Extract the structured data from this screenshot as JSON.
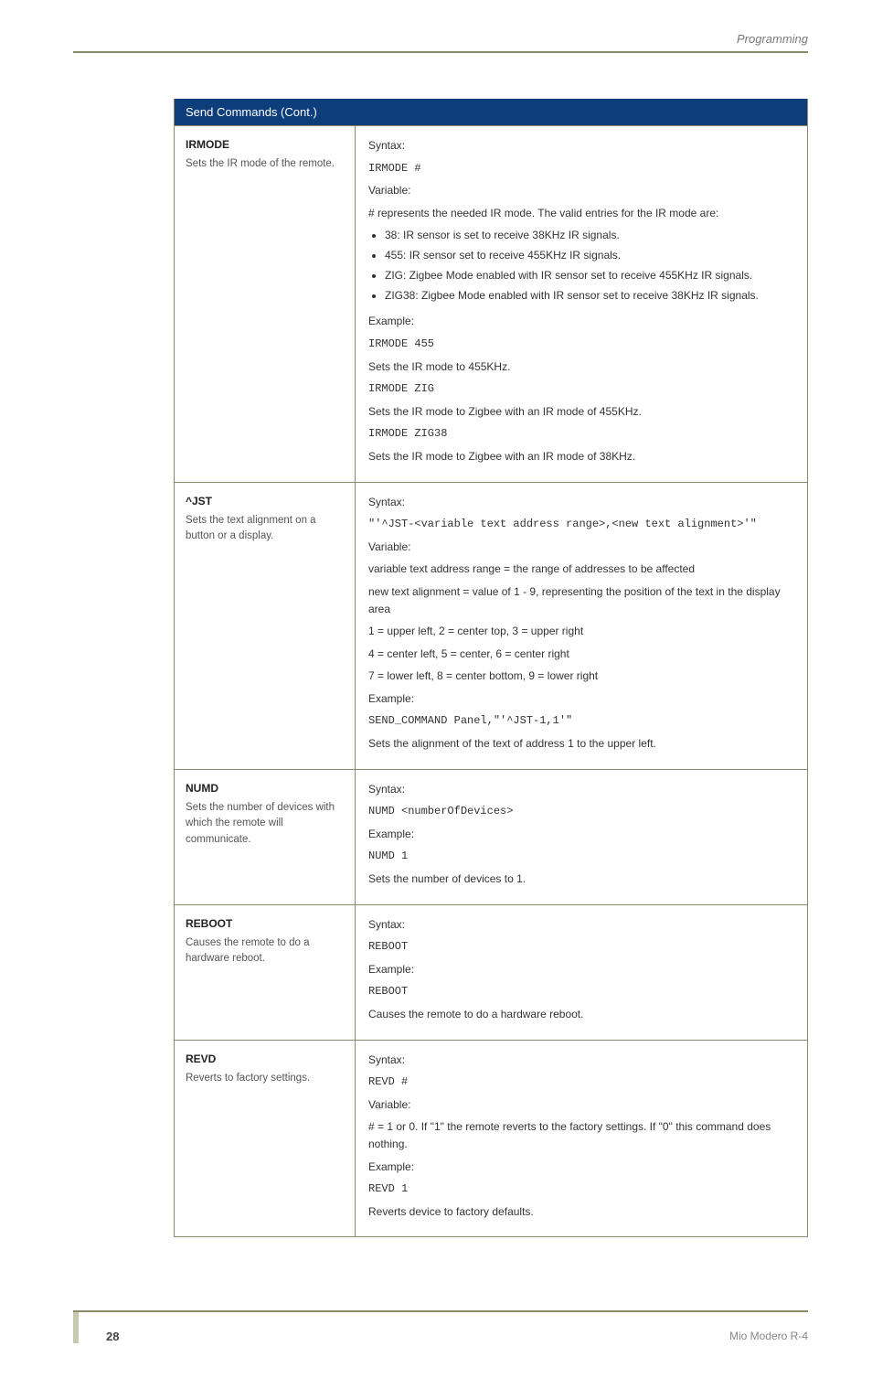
{
  "header": {
    "section": "Programming"
  },
  "table": {
    "title": "Send Commands (Cont.)",
    "rows": [
      {
        "name": "IRMODE",
        "desc": "Sets the IR mode of the remote.",
        "body": {
          "syntax_label": "Syntax:",
          "syntax": "IRMODE #",
          "var_label": "Variable:",
          "var_text": "# represents the needed IR mode. The valid entries for the IR mode are:",
          "list": [
            "38: IR sensor is set to receive 38KHz IR signals.",
            "455: IR sensor set to receive 455KHz IR signals.",
            "ZIG: Zigbee Mode enabled with IR sensor set to receive 455KHz IR signals.",
            "ZIG38: Zigbee Mode enabled with IR sensor set to receive 38KHz IR signals."
          ],
          "ex_label": "Example:",
          "ex1_code": "IRMODE 455",
          "ex1_text": "Sets the IR mode to 455KHz.",
          "ex2_code": "IRMODE ZIG",
          "ex2_text": "Sets the IR mode to Zigbee with an IR mode of 455KHz.",
          "ex3_code": "IRMODE ZIG38",
          "ex3_text": "Sets the IR mode to Zigbee with an IR mode of 38KHz."
        }
      },
      {
        "name": "^JST",
        "desc": "Sets the text alignment on a button or a display.",
        "body": {
          "syntax_label": "Syntax:",
          "syntax": "\"'^JST-<variable text address range>,<new text alignment>'\"",
          "var_label": "Variable:",
          "var_lines": [
            "variable text address range = the range of addresses to be affected",
            "new text alignment = value of 1 - 9, representing the position of the text in the display area",
            "1 = upper left, 2 = center top, 3 = upper right",
            "4 = center left, 5 = center, 6 = center right",
            "7 = lower left, 8 = center bottom, 9 = lower right"
          ],
          "ex_label": "Example:",
          "ex_code": "SEND_COMMAND Panel,\"'^JST-1,1'\"",
          "ex_text": "Sets the alignment of the text of address 1 to the upper left."
        }
      },
      {
        "name": "NUMD",
        "desc": "Sets the number of devices with which the remote will communicate.",
        "body": {
          "syntax_label": "Syntax:",
          "syntax": "NUMD <numberOfDevices>",
          "ex_label": "Example:",
          "ex_code": "NUMD 1",
          "ex_text": "Sets the number of devices to 1."
        }
      },
      {
        "name": "REBOOT",
        "desc": "Causes the remote to do a hardware reboot.",
        "body": {
          "syntax_label": "Syntax:",
          "syntax": "REBOOT",
          "ex_label": "Example:",
          "ex_code": "REBOOT",
          "ex_text": "Causes the remote to do a hardware reboot."
        }
      },
      {
        "name": "REVD",
        "desc": "Reverts to factory settings.",
        "body": {
          "syntax_label": "Syntax:",
          "syntax": "REVD #",
          "var_label": "Variable:",
          "var_text": "# = 1 or 0. If \"1\" the remote reverts to the factory settings. If \"0\" this command does nothing.",
          "ex_label": "Example:",
          "ex_code": "REVD 1",
          "ex_text": "Reverts device to factory defaults."
        }
      }
    ]
  },
  "footer": {
    "page": "28",
    "product": "Mio Modero R-4"
  }
}
